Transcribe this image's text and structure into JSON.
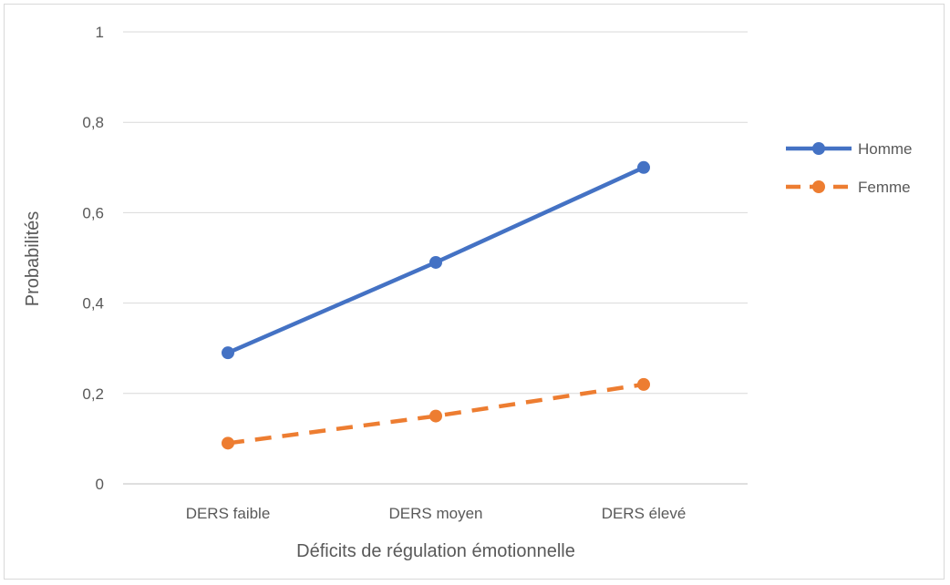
{
  "chart_data": {
    "type": "line",
    "title": "",
    "xlabel": "Déficits de régulation émotionnelle",
    "ylabel": "Probabilités",
    "categories": [
      "DERS faible",
      "DERS moyen",
      "DERS élevé"
    ],
    "ylim": [
      0,
      1
    ],
    "yticks": [
      0,
      0.2,
      0.4,
      0.6,
      0.8,
      1
    ],
    "ytick_labels": [
      "0",
      "0,2",
      "0,4",
      "0,6",
      "0,8",
      "1"
    ],
    "grid": true,
    "legend_position": "right",
    "series": [
      {
        "name": "Homme",
        "values": [
          0.29,
          0.49,
          0.7
        ],
        "color": "#4472c4",
        "line_style": "solid",
        "marker": "circle"
      },
      {
        "name": "Femme",
        "values": [
          0.09,
          0.15,
          0.22
        ],
        "color": "#ed7d31",
        "line_style": "dashed",
        "marker": "circle"
      }
    ]
  }
}
